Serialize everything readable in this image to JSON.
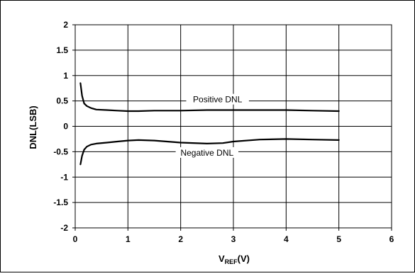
{
  "chart_data": {
    "type": "line",
    "title": "",
    "xlabel_main": "V",
    "xlabel_sub": "REF",
    "xlabel_suffix": "(V)",
    "ylabel": "DNL(LSB)",
    "xlim": [
      0,
      6
    ],
    "ylim": [
      -2,
      2
    ],
    "x_ticks": [
      "0",
      "1",
      "2",
      "3",
      "4",
      "5",
      "6"
    ],
    "y_ticks": [
      "2",
      "1.5",
      "1",
      "0.5",
      "0",
      "-0.5",
      "-1",
      "-1.5",
      "-2"
    ],
    "grid": true,
    "legend": "none",
    "series": [
      {
        "name": "Positive DNL",
        "color": "#000000",
        "points": [
          [
            0.1,
            0.85
          ],
          [
            0.13,
            0.6
          ],
          [
            0.17,
            0.45
          ],
          [
            0.22,
            0.4
          ],
          [
            0.3,
            0.36
          ],
          [
            0.4,
            0.33
          ],
          [
            0.6,
            0.32
          ],
          [
            0.8,
            0.31
          ],
          [
            1.0,
            0.3
          ],
          [
            1.2,
            0.3
          ],
          [
            1.5,
            0.31
          ],
          [
            2.0,
            0.31
          ],
          [
            2.5,
            0.32
          ],
          [
            3.0,
            0.32
          ],
          [
            3.5,
            0.32
          ],
          [
            4.0,
            0.32
          ],
          [
            4.5,
            0.31
          ],
          [
            5.0,
            0.3
          ]
        ]
      },
      {
        "name": "Negative DNL",
        "color": "#000000",
        "points": [
          [
            0.1,
            -0.75
          ],
          [
            0.13,
            -0.58
          ],
          [
            0.17,
            -0.46
          ],
          [
            0.22,
            -0.4
          ],
          [
            0.3,
            -0.36
          ],
          [
            0.4,
            -0.34
          ],
          [
            0.6,
            -0.32
          ],
          [
            0.8,
            -0.3
          ],
          [
            1.0,
            -0.28
          ],
          [
            1.2,
            -0.27
          ],
          [
            1.5,
            -0.28
          ],
          [
            2.0,
            -0.32
          ],
          [
            2.5,
            -0.34
          ],
          [
            2.8,
            -0.33
          ],
          [
            3.0,
            -0.3
          ],
          [
            3.5,
            -0.26
          ],
          [
            4.0,
            -0.25
          ],
          [
            4.5,
            -0.26
          ],
          [
            5.0,
            -0.27
          ]
        ]
      }
    ],
    "annotations": [
      {
        "text": "Positive DNL",
        "x": 2.7,
        "y": 0.5
      },
      {
        "text": "Negative DNL",
        "x": 2.5,
        "y": -0.55
      }
    ]
  }
}
